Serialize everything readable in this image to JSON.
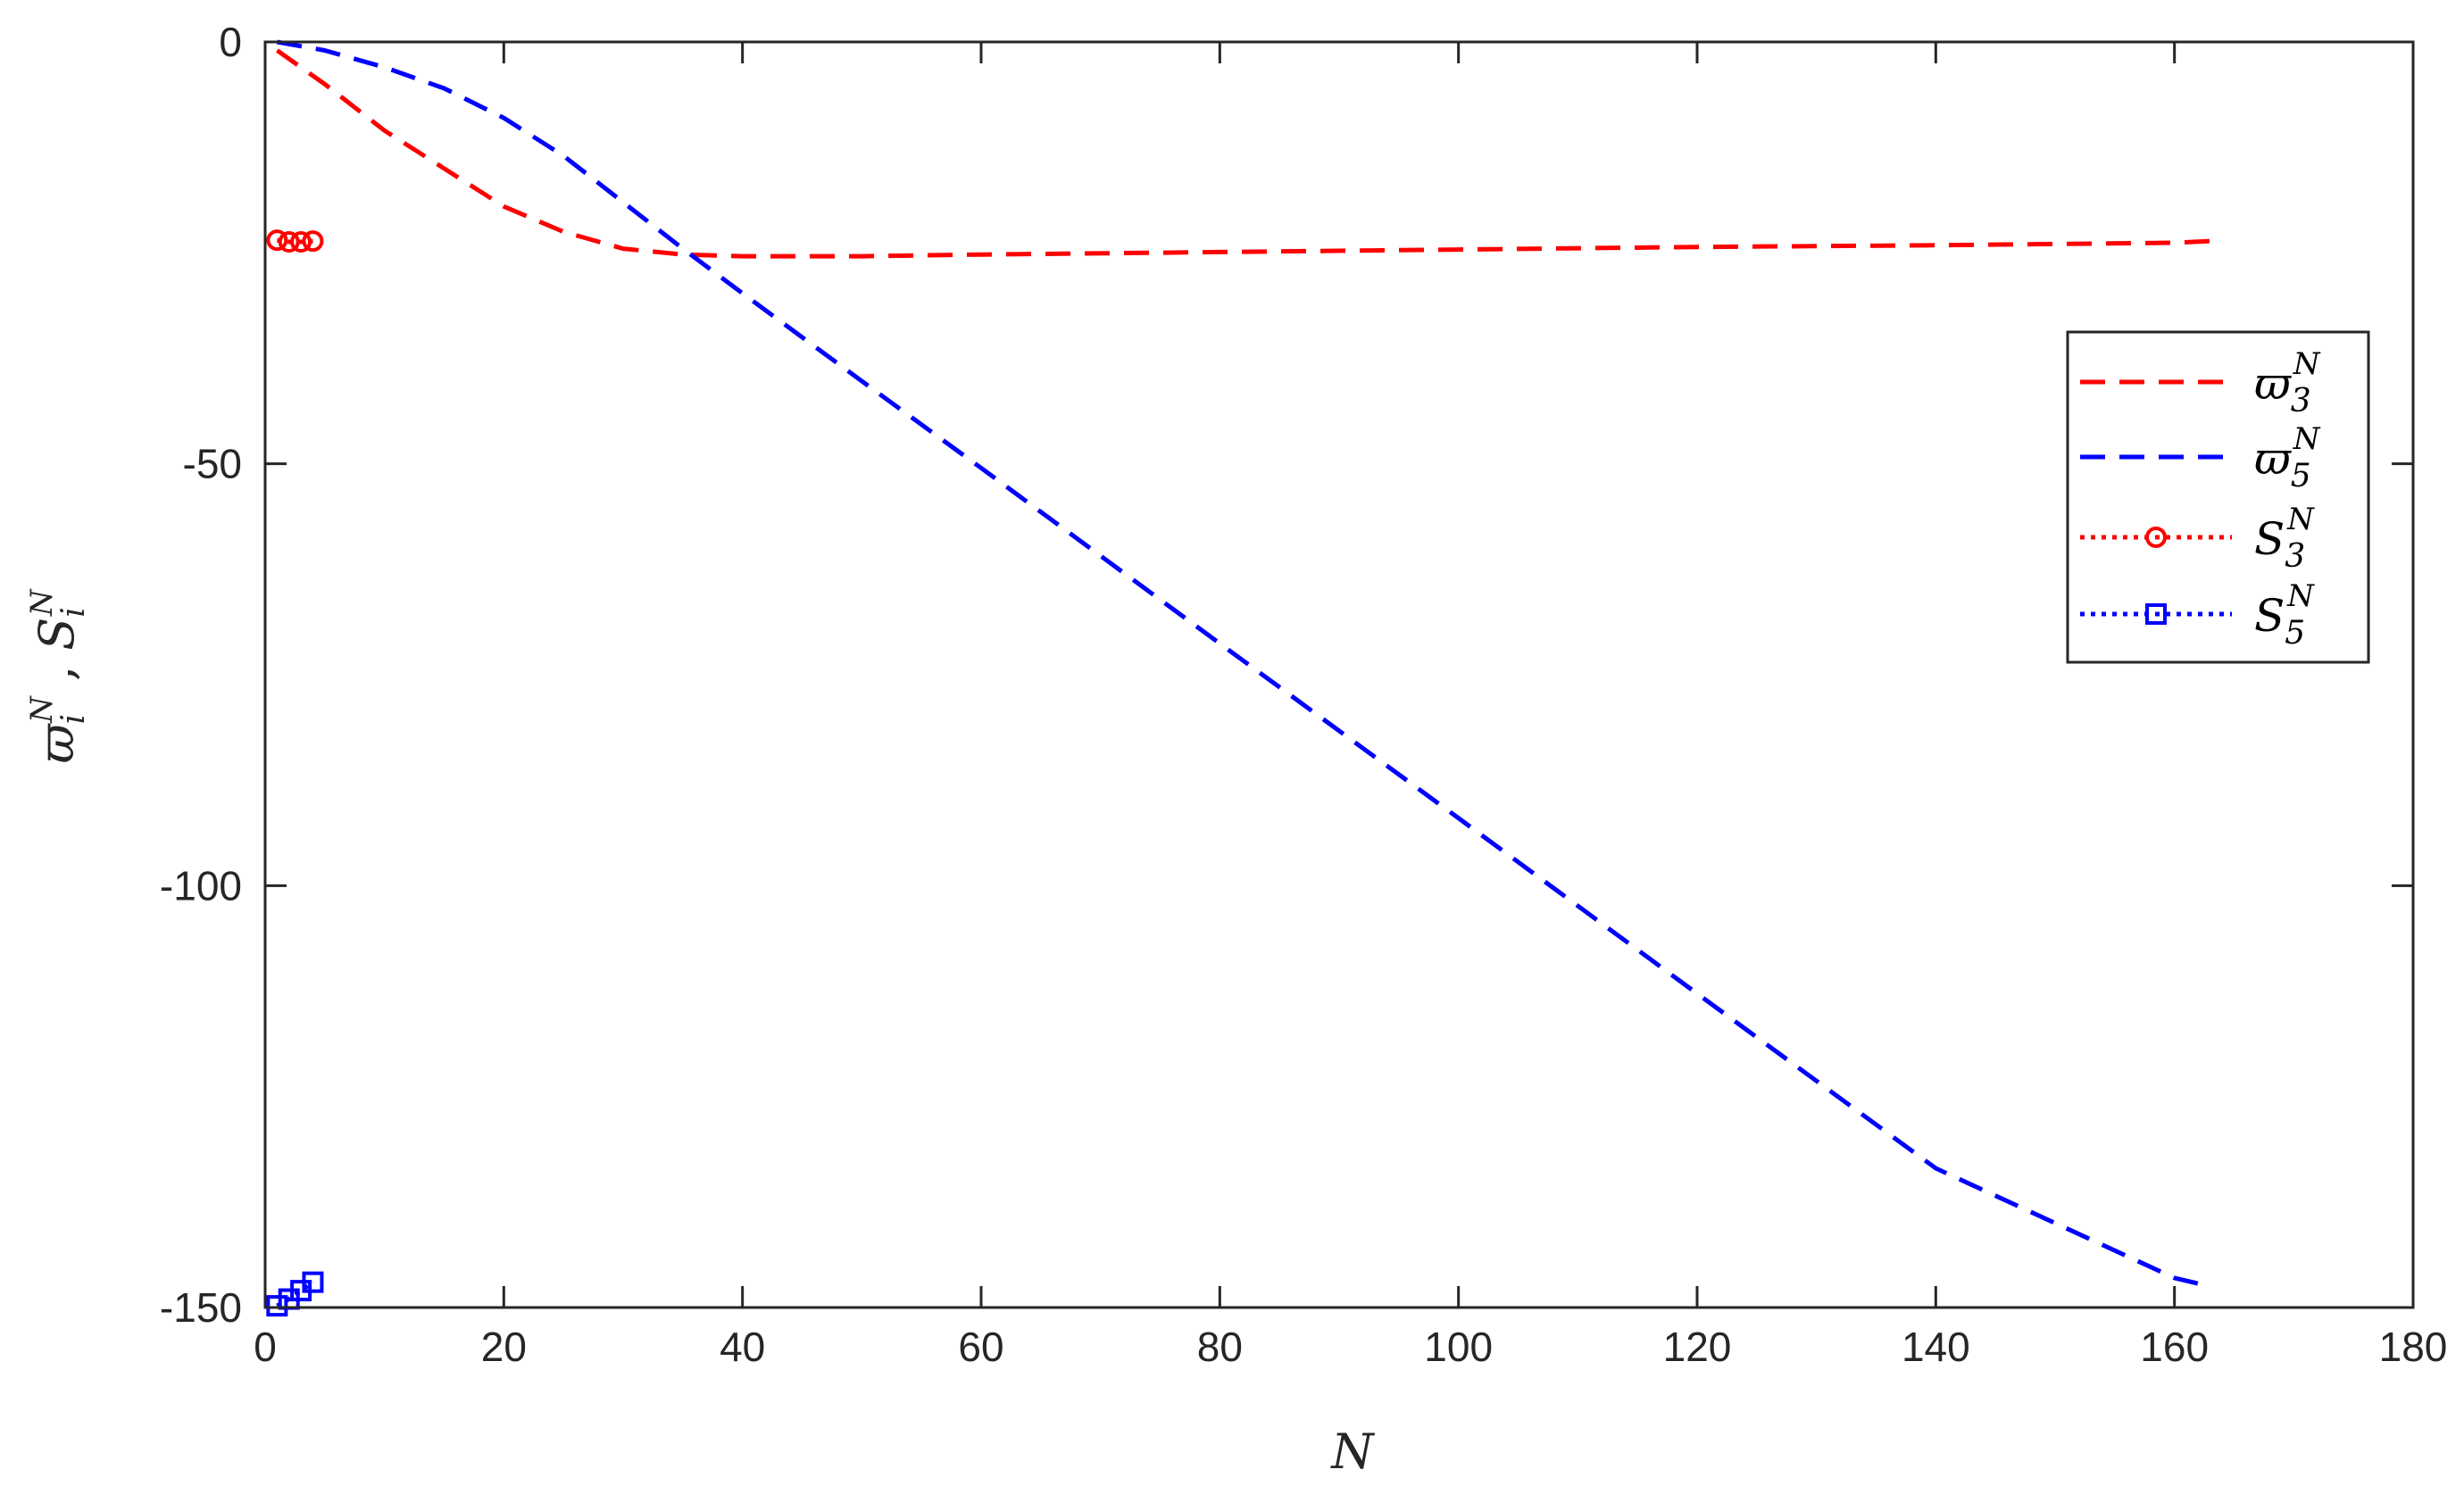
{
  "chart_data": {
    "type": "line",
    "xlabel": "N",
    "ylabel": {
      "base": "ϖ",
      "sub": "i",
      "sup": "N",
      "sep": " , ",
      "base2": "S",
      "sub2": "i",
      "sup2": "N"
    },
    "xlim": [
      0,
      180
    ],
    "ylim": [
      -150,
      0
    ],
    "xticks": [
      0,
      20,
      40,
      60,
      80,
      100,
      120,
      140,
      160,
      180
    ],
    "yticks": [
      0,
      -50,
      -100,
      -150
    ],
    "grid": false,
    "legend_position": "right",
    "series": [
      {
        "name": {
          "base": "ϖ",
          "sub": "3",
          "sup": "N"
        },
        "color": "#ff0000",
        "style": "dashed",
        "marker": "none",
        "x": [
          1,
          5,
          10,
          15,
          20,
          25,
          30,
          35,
          40,
          50,
          60,
          80,
          100,
          120,
          140,
          160,
          163
        ],
        "y": [
          -1,
          -5,
          -10.5,
          -15,
          -19.5,
          -22.5,
          -24.5,
          -25.2,
          -25.4,
          -25.4,
          -25.2,
          -24.9,
          -24.6,
          -24.3,
          -24.1,
          -23.8,
          -23.6
        ]
      },
      {
        "name": {
          "base": "ϖ",
          "sub": "5",
          "sup": "N"
        },
        "color": "#0000ff",
        "style": "dashed",
        "marker": "none",
        "x": [
          1,
          5,
          10,
          15,
          20,
          25,
          30,
          35,
          40,
          45,
          50,
          60,
          80,
          100,
          120,
          140,
          160,
          163
        ],
        "y": [
          0,
          -1,
          -3,
          -5.5,
          -9,
          -13.5,
          -19,
          -24.5,
          -29.8,
          -35,
          -40.2,
          -50.5,
          -71.3,
          -92,
          -112.8,
          -133.5,
          -146.5,
          -147.5
        ]
      },
      {
        "name": {
          "base": "S",
          "sub": "3",
          "sup": "N"
        },
        "color": "#ff0000",
        "style": "dotted",
        "marker": "circle",
        "x": [
          1,
          2,
          3,
          4
        ],
        "y": [
          -23.5,
          -23.7,
          -23.7,
          -23.6
        ]
      },
      {
        "name": {
          "base": "S",
          "sub": "5",
          "sup": "N"
        },
        "color": "#0000ff",
        "style": "dotted",
        "marker": "square",
        "x": [
          1,
          2,
          3,
          4
        ],
        "y": [
          -149.8,
          -149,
          -148,
          -147
        ]
      }
    ]
  }
}
